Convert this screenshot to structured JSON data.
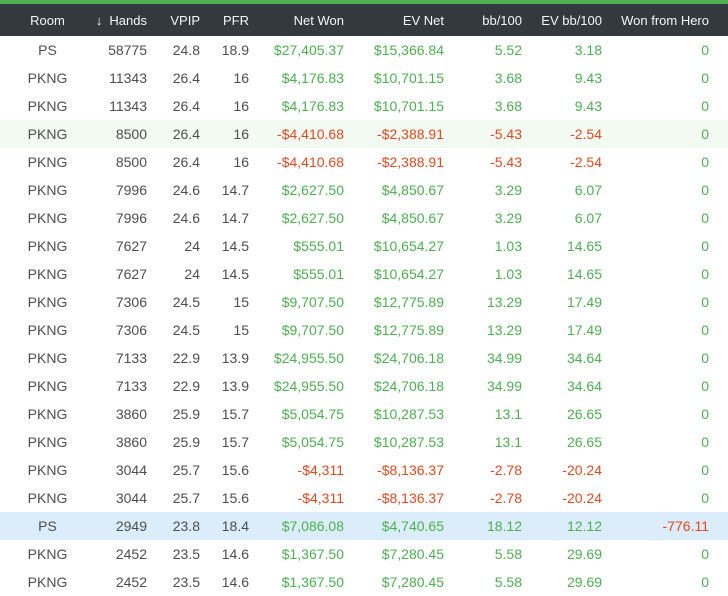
{
  "colors": {
    "accent_bar": "#4caf50",
    "header_bg": "#333a3e",
    "positive_value": "#4caf50",
    "negative_value": "#e2491f",
    "row_highlight_green": "#f3faf2",
    "row_highlight_blue": "#dbedfa"
  },
  "table": {
    "sort_icon": "↓",
    "sorted_column": "Hands",
    "sort_direction": "descending",
    "columns": [
      {
        "key": "room",
        "label": "Room",
        "align": "center",
        "colored": false
      },
      {
        "key": "hands",
        "label": "Hands",
        "align": "right",
        "colored": false,
        "sorted": true
      },
      {
        "key": "vpip",
        "label": "VPIP",
        "align": "right",
        "colored": false
      },
      {
        "key": "pfr",
        "label": "PFR",
        "align": "right",
        "colored": false
      },
      {
        "key": "net_won",
        "label": "Net Won",
        "align": "right",
        "colored": true
      },
      {
        "key": "ev_net",
        "label": "EV Net",
        "align": "right",
        "colored": true
      },
      {
        "key": "bb_100",
        "label": "bb/100",
        "align": "right",
        "colored": true
      },
      {
        "key": "ev_bb_100",
        "label": "EV bb/100",
        "align": "right",
        "colored": true
      },
      {
        "key": "won_from_hero",
        "label": "Won from Hero",
        "align": "right",
        "colored": true
      }
    ],
    "rows": [
      {
        "room": "PS",
        "hands": "58775",
        "vpip": "24.8",
        "pfr": "18.9",
        "net_won": "$27,405.37",
        "ev_net": "$15,366.84",
        "bb_100": "5.52",
        "ev_bb_100": "3.18",
        "won_from_hero": "0",
        "highlight": null
      },
      {
        "room": "PKNG",
        "hands": "11343",
        "vpip": "26.4",
        "pfr": "16",
        "net_won": "$4,176.83",
        "ev_net": "$10,701.15",
        "bb_100": "3.68",
        "ev_bb_100": "9.43",
        "won_from_hero": "0",
        "highlight": null
      },
      {
        "room": "PKNG",
        "hands": "11343",
        "vpip": "26.4",
        "pfr": "16",
        "net_won": "$4,176.83",
        "ev_net": "$10,701.15",
        "bb_100": "3.68",
        "ev_bb_100": "9.43",
        "won_from_hero": "0",
        "highlight": null
      },
      {
        "room": "PKNG",
        "hands": "8500",
        "vpip": "26.4",
        "pfr": "16",
        "net_won": "-$4,410.68",
        "ev_net": "-$2,388.91",
        "bb_100": "-5.43",
        "ev_bb_100": "-2.54",
        "won_from_hero": "0",
        "highlight": "green"
      },
      {
        "room": "PKNG",
        "hands": "8500",
        "vpip": "26.4",
        "pfr": "16",
        "net_won": "-$4,410.68",
        "ev_net": "-$2,388.91",
        "bb_100": "-5.43",
        "ev_bb_100": "-2.54",
        "won_from_hero": "0",
        "highlight": null
      },
      {
        "room": "PKNG",
        "hands": "7996",
        "vpip": "24.6",
        "pfr": "14.7",
        "net_won": "$2,627.50",
        "ev_net": "$4,850.67",
        "bb_100": "3.29",
        "ev_bb_100": "6.07",
        "won_from_hero": "0",
        "highlight": null
      },
      {
        "room": "PKNG",
        "hands": "7996",
        "vpip": "24.6",
        "pfr": "14.7",
        "net_won": "$2,627.50",
        "ev_net": "$4,850.67",
        "bb_100": "3.29",
        "ev_bb_100": "6.07",
        "won_from_hero": "0",
        "highlight": null
      },
      {
        "room": "PKNG",
        "hands": "7627",
        "vpip": "24",
        "pfr": "14.5",
        "net_won": "$555.01",
        "ev_net": "$10,654.27",
        "bb_100": "1.03",
        "ev_bb_100": "14.65",
        "won_from_hero": "0",
        "highlight": null
      },
      {
        "room": "PKNG",
        "hands": "7627",
        "vpip": "24",
        "pfr": "14.5",
        "net_won": "$555.01",
        "ev_net": "$10,654.27",
        "bb_100": "1.03",
        "ev_bb_100": "14.65",
        "won_from_hero": "0",
        "highlight": null
      },
      {
        "room": "PKNG",
        "hands": "7306",
        "vpip": "24.5",
        "pfr": "15",
        "net_won": "$9,707.50",
        "ev_net": "$12,775.89",
        "bb_100": "13.29",
        "ev_bb_100": "17.49",
        "won_from_hero": "0",
        "highlight": null
      },
      {
        "room": "PKNG",
        "hands": "7306",
        "vpip": "24.5",
        "pfr": "15",
        "net_won": "$9,707.50",
        "ev_net": "$12,775.89",
        "bb_100": "13.29",
        "ev_bb_100": "17.49",
        "won_from_hero": "0",
        "highlight": null
      },
      {
        "room": "PKNG",
        "hands": "7133",
        "vpip": "22.9",
        "pfr": "13.9",
        "net_won": "$24,955.50",
        "ev_net": "$24,706.18",
        "bb_100": "34.99",
        "ev_bb_100": "34.64",
        "won_from_hero": "0",
        "highlight": null
      },
      {
        "room": "PKNG",
        "hands": "7133",
        "vpip": "22.9",
        "pfr": "13.9",
        "net_won": "$24,955.50",
        "ev_net": "$24,706.18",
        "bb_100": "34.99",
        "ev_bb_100": "34.64",
        "won_from_hero": "0",
        "highlight": null
      },
      {
        "room": "PKNG",
        "hands": "3860",
        "vpip": "25.9",
        "pfr": "15.7",
        "net_won": "$5,054.75",
        "ev_net": "$10,287.53",
        "bb_100": "13.1",
        "ev_bb_100": "26.65",
        "won_from_hero": "0",
        "highlight": null
      },
      {
        "room": "PKNG",
        "hands": "3860",
        "vpip": "25.9",
        "pfr": "15.7",
        "net_won": "$5,054.75",
        "ev_net": "$10,287.53",
        "bb_100": "13.1",
        "ev_bb_100": "26.65",
        "won_from_hero": "0",
        "highlight": null
      },
      {
        "room": "PKNG",
        "hands": "3044",
        "vpip": "25.7",
        "pfr": "15.6",
        "net_won": "-$4,311",
        "ev_net": "-$8,136.37",
        "bb_100": "-2.78",
        "ev_bb_100": "-20.24",
        "won_from_hero": "0",
        "highlight": null
      },
      {
        "room": "PKNG",
        "hands": "3044",
        "vpip": "25.7",
        "pfr": "15.6",
        "net_won": "-$4,311",
        "ev_net": "-$8,136.37",
        "bb_100": "-2.78",
        "ev_bb_100": "-20.24",
        "won_from_hero": "0",
        "highlight": null
      },
      {
        "room": "PS",
        "hands": "2949",
        "vpip": "23.8",
        "pfr": "18.4",
        "net_won": "$7,086.08",
        "ev_net": "$4,740.65",
        "bb_100": "18.12",
        "ev_bb_100": "12.12",
        "won_from_hero": "-776.11",
        "highlight": "blue"
      },
      {
        "room": "PKNG",
        "hands": "2452",
        "vpip": "23.5",
        "pfr": "14.6",
        "net_won": "$1,367.50",
        "ev_net": "$7,280.45",
        "bb_100": "5.58",
        "ev_bb_100": "29.69",
        "won_from_hero": "0",
        "highlight": null
      },
      {
        "room": "PKNG",
        "hands": "2452",
        "vpip": "23.5",
        "pfr": "14.6",
        "net_won": "$1,367.50",
        "ev_net": "$7,280.45",
        "bb_100": "5.58",
        "ev_bb_100": "29.69",
        "won_from_hero": "0",
        "highlight": null
      }
    ]
  }
}
